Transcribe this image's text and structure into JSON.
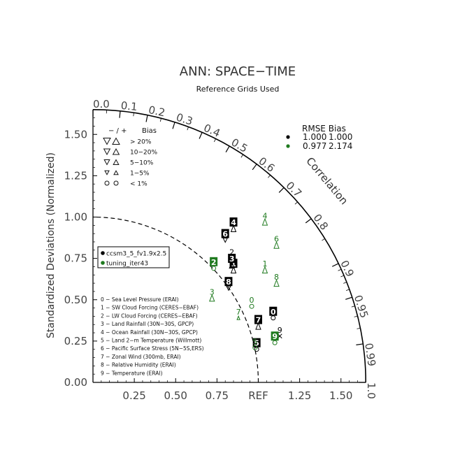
{
  "chart_data": {
    "type": "taylor_diagram",
    "title": "ANN: SPACE−TIME",
    "subtitle": "Reference Grids Used",
    "ylabel": "Standardized Deviations (Normalized)",
    "arc_label": "Correlation",
    "ref_label": "REF",
    "std_range": [
      0,
      1.65
    ],
    "y_ticks": [
      "0.00",
      "0.25",
      "0.50",
      "0.75",
      "1.00",
      "1.25",
      "1.50"
    ],
    "x_ticks": [
      "0.25",
      "0.50",
      "0.75",
      "1.25",
      "1.50"
    ],
    "corr_ticks": [
      "0.0",
      "0.1",
      "0.2",
      "0.3",
      "0.4",
      "0.5",
      "0.6",
      "0.7",
      "0.8",
      "0.9",
      "0.95",
      "0.99",
      "1.0"
    ],
    "bias_legend": {
      "header_sym": "− / +",
      "header_label": "Bias",
      "rows": [
        "> 20%",
        "10−20%",
        "5−10%",
        "1−5%",
        "< 1%"
      ]
    },
    "rmse_table": {
      "header": "RMSE  Bias",
      "rows": [
        {
          "rmse": "1.000",
          "bias": "1.000",
          "color": "#000000"
        },
        {
          "rmse": "0.977",
          "bias": "2.174",
          "color": "#1f7a1f"
        }
      ]
    },
    "cases": [
      {
        "name": "ccsm3_5_fv1.9x2.5",
        "color": "#000000"
      },
      {
        "name": "tuning_iter43",
        "color": "#1f7a1f"
      }
    ],
    "variables": [
      "0 − Sea Level Pressure (ERAI)",
      "1 − SW Cloud Forcing (CERES−EBAF)",
      "2 − LW Cloud Forcing (CERES−EBAF)",
      "3 − Land Rainfall (30N−30S, GPCP)",
      "4 − Ocean Rainfall (30N−30S, GPCP)",
      "5 − Land 2−m Temperature (Willmott)",
      "6 − Pacific Surface Stress (5N−5S,ERS)",
      "7 − Zonal Wind (300mb, ERAI)",
      "8 − Relative Humidity (ERAI)",
      "9 − Temperature (ERAI)"
    ],
    "points": [
      {
        "case": 0,
        "var": "0",
        "x": 1.09,
        "y": 0.39,
        "sym": "circle",
        "boxed": true
      },
      {
        "case": 0,
        "var": "1",
        "x": 0.85,
        "y": 0.68,
        "sym": "up",
        "boxed": true
      },
      {
        "case": 0,
        "var": "2",
        "x": 0.84,
        "y": 0.75,
        "sym": "up",
        "boxed": false
      },
      {
        "case": 0,
        "var": "3",
        "x": 0.84,
        "y": 0.71,
        "sym": "up",
        "boxed": true
      },
      {
        "case": 0,
        "var": "4",
        "x": 0.85,
        "y": 0.93,
        "sym": "up",
        "boxed": true
      },
      {
        "case": 0,
        "var": "5",
        "x": 0.99,
        "y": 0.2,
        "sym": "circle",
        "boxed": true
      },
      {
        "case": 0,
        "var": "6",
        "x": 0.8,
        "y": 0.86,
        "sym": "down",
        "boxed": true
      },
      {
        "case": 0,
        "var": "7",
        "x": 1.0,
        "y": 0.34,
        "sym": "up",
        "boxed": true
      },
      {
        "case": 0,
        "var": "8",
        "x": 0.82,
        "y": 0.57,
        "sym": "down",
        "boxed": true
      },
      {
        "case": 0,
        "var": "9",
        "x": 1.13,
        "y": 0.28,
        "sym": "x",
        "boxed": false
      },
      {
        "case": 1,
        "var": "0",
        "x": 0.96,
        "y": 0.46,
        "sym": "circle",
        "boxed": false
      },
      {
        "case": 1,
        "var": "1",
        "x": 1.04,
        "y": 0.68,
        "sym": "up",
        "boxed": false
      },
      {
        "case": 1,
        "var": "2",
        "x": 0.73,
        "y": 0.69,
        "sym": "circle",
        "boxed": true
      },
      {
        "case": 1,
        "var": "3",
        "x": 0.72,
        "y": 0.51,
        "sym": "up",
        "boxed": false
      },
      {
        "case": 1,
        "var": "4",
        "x": 1.04,
        "y": 0.97,
        "sym": "up",
        "boxed": false
      },
      {
        "case": 1,
        "var": "5",
        "x": 0.98,
        "y": 0.21,
        "sym": "circle",
        "boxed": false
      },
      {
        "case": 1,
        "var": "6",
        "x": 1.11,
        "y": 0.83,
        "sym": "up",
        "boxed": false
      },
      {
        "case": 1,
        "var": "7",
        "x": 0.88,
        "y": 0.39,
        "sym": "up-small",
        "boxed": false
      },
      {
        "case": 1,
        "var": "8",
        "x": 1.11,
        "y": 0.6,
        "sym": "up",
        "boxed": false
      },
      {
        "case": 1,
        "var": "9",
        "x": 1.1,
        "y": 0.24,
        "sym": "circle",
        "boxed": true
      }
    ]
  }
}
